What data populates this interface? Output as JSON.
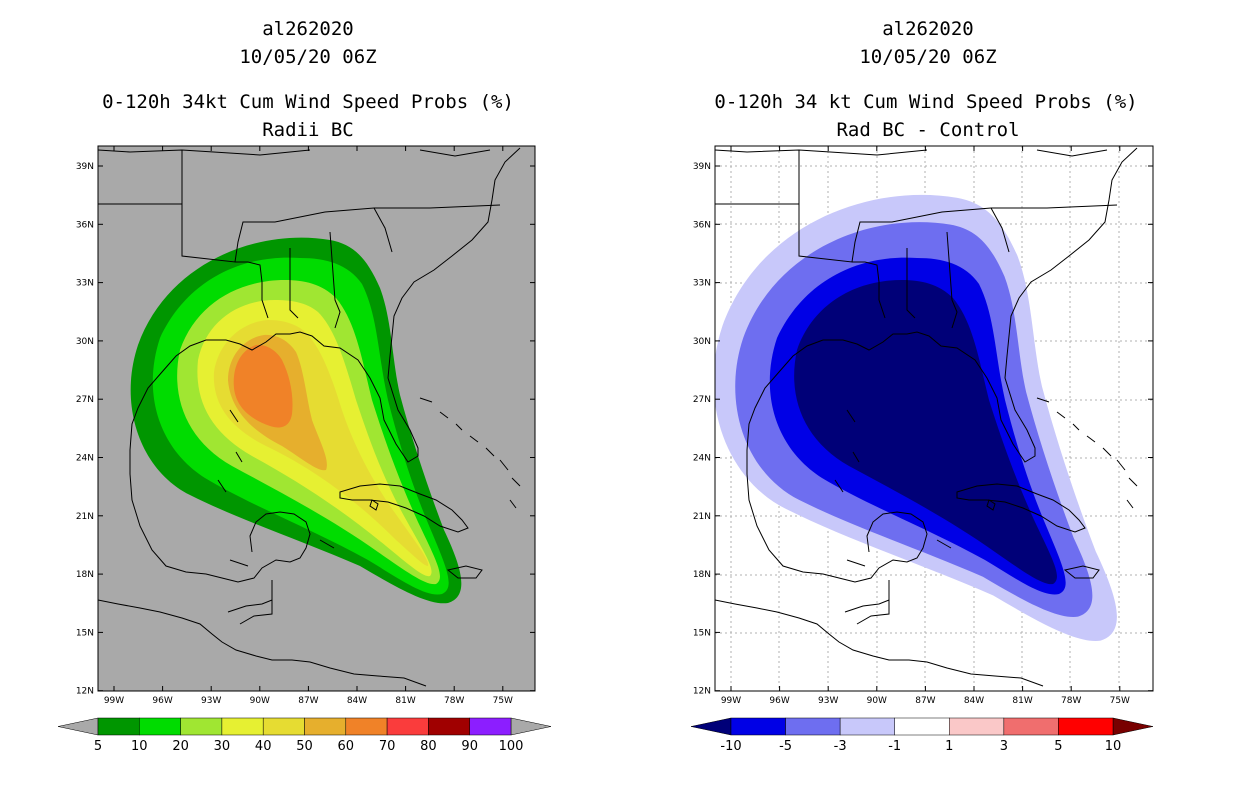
{
  "left": {
    "storm_id": "al262020",
    "datetime": "10/05/20 06Z",
    "title": "0-120h 34kt Cum Wind Speed Probs (%)",
    "subtitle": "Radii BC",
    "lat_labels": [
      "39N",
      "36N",
      "33N",
      "30N",
      "27N",
      "24N",
      "21N",
      "18N",
      "15N",
      "12N"
    ],
    "lon_labels": [
      "99W",
      "96W",
      "93W",
      "90W",
      "87W",
      "84W",
      "81W",
      "78W",
      "75W"
    ],
    "colorbar": {
      "labels": [
        "5",
        "10",
        "20",
        "30",
        "40",
        "50",
        "60",
        "70",
        "80",
        "90",
        "100"
      ],
      "colors": [
        "#009600",
        "#00dc00",
        "#a0e632",
        "#e6f032",
        "#e6dc32",
        "#e6af2d",
        "#f08228",
        "#fa3c3c",
        "#a00000",
        "#8c1eff"
      ],
      "arrow_color": "#a9a9a9"
    },
    "colors": {
      "background": "#a9a9a9"
    }
  },
  "right": {
    "storm_id": "al262020",
    "datetime": "10/05/20 06Z",
    "title": "0-120h 34 kt Cum Wind Speed Probs (%)",
    "subtitle": "Rad BC - Control",
    "lat_labels": [
      "39N",
      "36N",
      "33N",
      "30N",
      "27N",
      "24N",
      "21N",
      "18N",
      "15N",
      "12N"
    ],
    "lon_labels": [
      "99W",
      "96W",
      "93W",
      "90W",
      "87W",
      "84W",
      "81W",
      "78W",
      "75W"
    ],
    "colorbar": {
      "labels": [
        "-10",
        "-5",
        "-3",
        "-1",
        "1",
        "3",
        "5",
        "10"
      ],
      "colors": [
        "#0000e6",
        "#6e6ef0",
        "#c8c8fa",
        "#ffffff",
        "#fac8c8",
        "#f06e6e",
        "#ff0000"
      ],
      "low_arrow_color": "#000078",
      "high_arrow_color": "#780000"
    },
    "colors": {
      "background": "#ffffff"
    }
  }
}
